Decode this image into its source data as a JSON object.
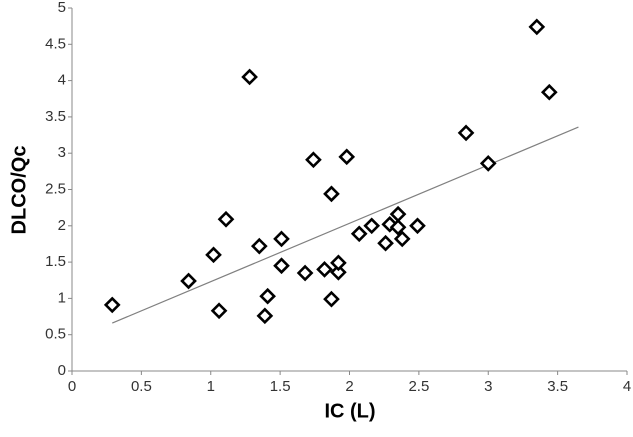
{
  "chart_data": {
    "type": "scatter",
    "x_label": "IC (L)",
    "y_label": "DLCO/Qc",
    "x": [
      0.29,
      0.84,
      1.02,
      1.06,
      1.11,
      1.28,
      1.35,
      1.39,
      1.41,
      1.51,
      1.51,
      1.68,
      1.74,
      1.82,
      1.87,
      1.87,
      1.92,
      1.92,
      1.98,
      2.07,
      2.16,
      2.26,
      2.29,
      2.35,
      2.35,
      2.38,
      2.49,
      2.84,
      3.0,
      3.35,
      3.44
    ],
    "values": [
      0.91,
      1.24,
      1.6,
      0.83,
      2.09,
      4.05,
      1.72,
      0.76,
      1.03,
      1.45,
      1.82,
      1.35,
      2.91,
      1.4,
      2.44,
      0.99,
      1.36,
      1.49,
      2.95,
      1.89,
      2.0,
      1.76,
      2.02,
      2.16,
      1.98,
      1.82,
      2.0,
      3.28,
      2.86,
      4.74,
      3.84
    ],
    "color": "#000000",
    "trendline": {
      "x": [
        0.29,
        3.65
      ],
      "y": [
        0.66,
        3.36
      ],
      "color": "#808080"
    },
    "xlim": [
      0,
      4
    ],
    "xticks": [
      0,
      0.5,
      1,
      1.5,
      2,
      2.5,
      3,
      3.5,
      4
    ],
    "ylim": [
      0,
      5
    ],
    "yticks": [
      0,
      0.5,
      1,
      1.5,
      2,
      2.5,
      3,
      3.5,
      4,
      4.5,
      5
    ],
    "grid": false
  }
}
